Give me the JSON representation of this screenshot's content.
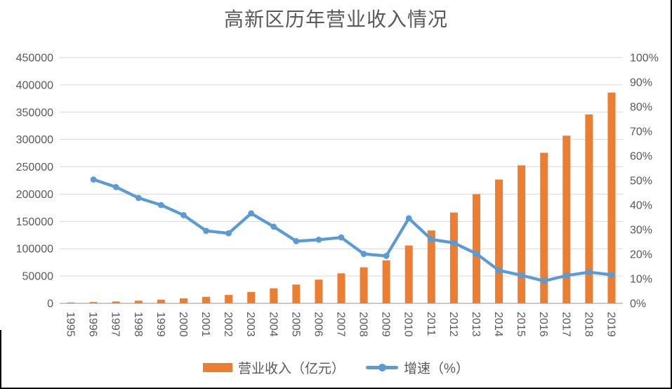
{
  "title": "高新区历年营业收入情况",
  "chart_data": {
    "type": "combo_bar_line",
    "title": "高新区历年营业收入情况",
    "categories": [
      "1995",
      "1996",
      "1997",
      "1998",
      "1999",
      "2000",
      "2001",
      "2002",
      "2003",
      "2004",
      "2005",
      "2006",
      "2007",
      "2008",
      "2009",
      "2010",
      "2011",
      "2012",
      "2013",
      "2014",
      "2015",
      "2016",
      "2017",
      "2018",
      "2019"
    ],
    "series": [
      {
        "name": "营业收入（亿元）",
        "type": "bar",
        "axis": "left",
        "color": "#ED7D31",
        "values": [
          1530,
          2300,
          3388,
          4840,
          6775,
          9209,
          11928,
          15326,
          20939,
          27466,
          34416,
          43320,
          54926,
          65986,
          78707,
          105917,
          133434,
          166319,
          199902,
          226721,
          252665,
          275723,
          307000,
          345899,
          385959
        ]
      },
      {
        "name": "增速（%）",
        "type": "line",
        "axis": "right",
        "color": "#5B9BD5",
        "marker": "circle",
        "values": [
          null,
          50.4,
          47.3,
          42.9,
          40.0,
          35.9,
          29.5,
          28.5,
          36.6,
          31.2,
          25.3,
          25.9,
          26.8,
          20.1,
          19.3,
          34.6,
          26.0,
          24.6,
          20.2,
          13.4,
          11.4,
          9.1,
          11.3,
          12.7,
          11.6
        ]
      }
    ],
    "left_axis": {
      "min": 0,
      "max": 450000,
      "step": 50000,
      "tick_labels": [
        "0",
        "50000",
        "100000",
        "150000",
        "200000",
        "250000",
        "300000",
        "350000",
        "400000",
        "450000"
      ]
    },
    "right_axis": {
      "min": 0,
      "max": 100,
      "step": 10,
      "tick_labels": [
        "0%",
        "10%",
        "20%",
        "30%",
        "40%",
        "50%",
        "60%",
        "70%",
        "80%",
        "90%",
        "100%"
      ]
    },
    "grid": true,
    "grid_color": "#D9D9D9",
    "axis_line_color": "#C9C9C9",
    "text_color": "#595959",
    "legend_position": "bottom"
  }
}
